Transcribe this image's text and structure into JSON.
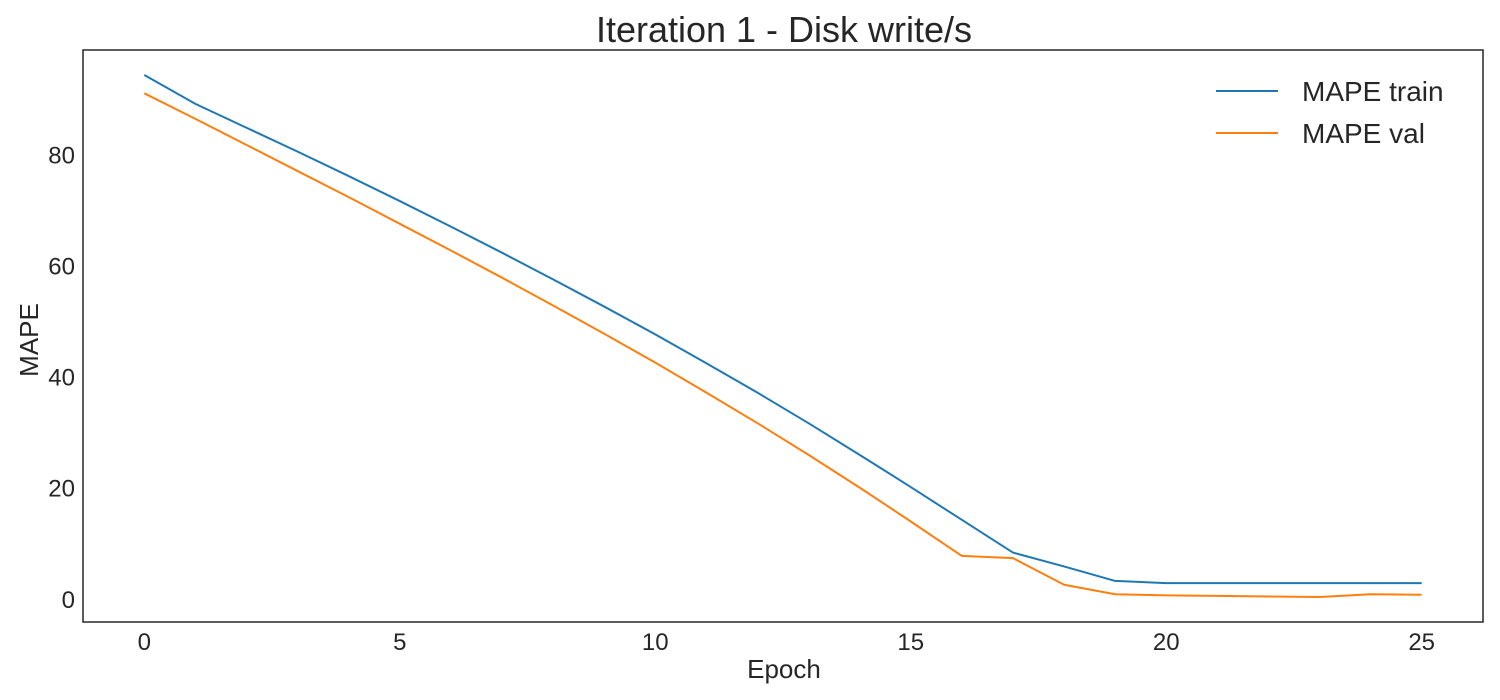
{
  "chart_data": {
    "type": "line",
    "title": "Iteration 1 - Disk write/s",
    "xlabel": "Epoch",
    "ylabel": "MAPE",
    "xlim": [
      -1.2,
      26.2
    ],
    "ylim": [
      -4,
      99
    ],
    "xticks": [
      0,
      5,
      10,
      15,
      20,
      25
    ],
    "yticks": [
      0,
      20,
      40,
      60,
      80
    ],
    "grid": false,
    "legend_position": "top-right",
    "x": [
      0,
      1,
      2,
      3,
      4,
      5,
      6,
      7,
      8,
      9,
      10,
      11,
      12,
      13,
      14,
      15,
      16,
      17,
      18,
      19,
      20,
      21,
      22,
      23,
      24,
      25
    ],
    "series": [
      {
        "name": "MAPE train",
        "color": "#1f77b4",
        "values": [
          94.5,
          89.3,
          85.0,
          80.7,
          76.3,
          71.8,
          67.2,
          62.5,
          57.7,
          52.8,
          47.8,
          42.6,
          37.3,
          31.8,
          26.1,
          20.3,
          14.4,
          8.5,
          6.0,
          3.4,
          3.0,
          3.0,
          3.0,
          3.0,
          3.0,
          3.0
        ]
      },
      {
        "name": "MAPE val",
        "color": "#ff7f0e",
        "values": [
          91.2,
          86.6,
          81.9,
          77.2,
          72.5,
          67.7,
          62.9,
          58.0,
          53.0,
          47.9,
          42.7,
          37.3,
          31.8,
          26.1,
          20.2,
          14.1,
          7.9,
          7.5,
          2.7,
          1.0,
          0.8,
          0.7,
          0.6,
          0.5,
          1.0,
          0.9
        ]
      }
    ]
  }
}
